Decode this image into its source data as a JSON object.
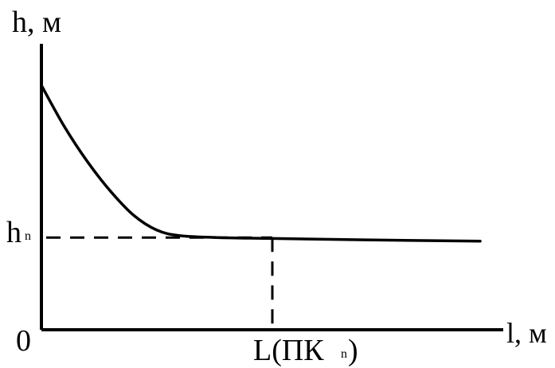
{
  "chart_data": {
    "type": "line",
    "ylabel": "h, м",
    "xlabel": "l, м",
    "origin_label": "0",
    "hn_label": {
      "main": "h",
      "sub": "n"
    },
    "L_label": {
      "prefix": "L(ПК",
      "sub": "n",
      "suffix": ")"
    },
    "series": [
      {
        "points": [
          {
            "x": 0,
            "y": 2.65
          },
          {
            "x": 0.05,
            "y": 2.2
          },
          {
            "x": 0.1,
            "y": 1.82
          },
          {
            "x": 0.15,
            "y": 1.5
          },
          {
            "x": 0.2,
            "y": 1.24
          },
          {
            "x": 0.25,
            "y": 1.08
          },
          {
            "x": 0.3,
            "y": 1.02
          },
          {
            "x": 0.38,
            "y": 1.0
          },
          {
            "x": 0.5,
            "y": 0.99
          },
          {
            "x": 0.7,
            "y": 0.975
          },
          {
            "x": 0.95,
            "y": 0.96
          }
        ]
      }
    ],
    "hn_value": 1.0,
    "L_value": 0.5,
    "xlim": [
      0,
      1
    ],
    "ylim": [
      0,
      3.1
    ]
  }
}
